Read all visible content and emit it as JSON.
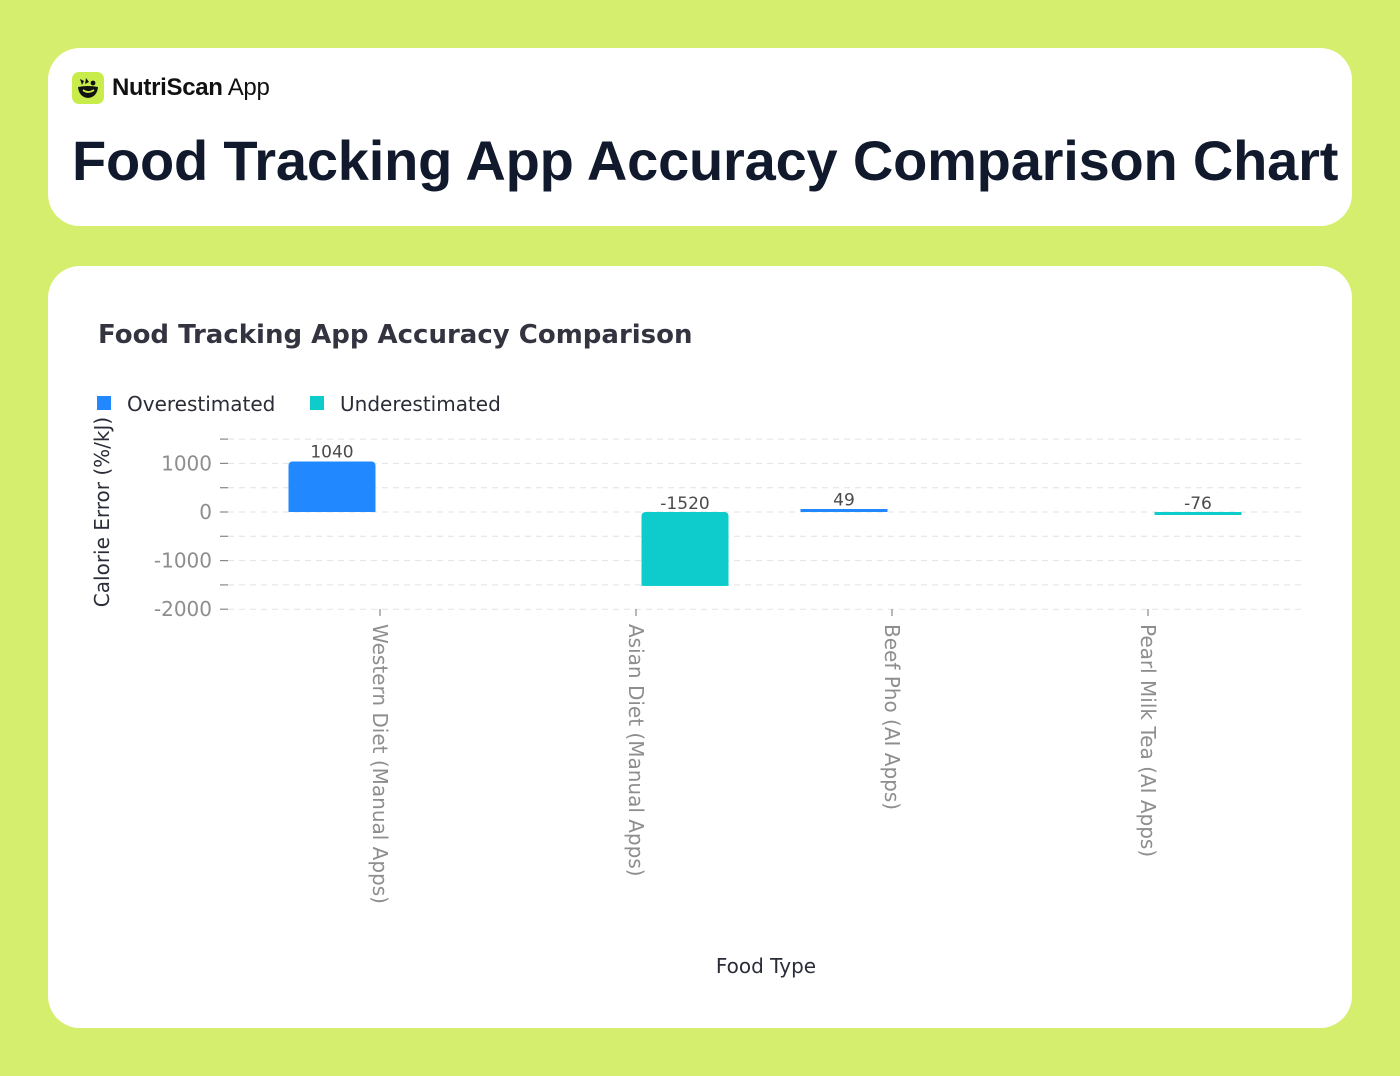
{
  "brand": {
    "name_bold": "NutriScan",
    "name_light": "App",
    "logo_icon": "bowl-leaf-icon",
    "logo_color": "#c8ec4a"
  },
  "header": {
    "title": "Food Tracking App Accuracy Comparison Chart"
  },
  "colors": {
    "page_background": "#d6ee6e",
    "overestimated": "#2288ff",
    "underestimated": "#0ecccc",
    "title_text": "#111a2c"
  },
  "chart_data": {
    "type": "bar",
    "title": "Food Tracking App Accuracy Comparison",
    "xlabel": "Food Type",
    "ylabel": "Calorie Error (%/kJ)",
    "categories": [
      "Western Diet (Manual Apps)",
      "Asian Diet (Manual Apps)",
      "Beef Pho (AI Apps)",
      "Pearl Milk Tea (AI Apps)"
    ],
    "values": [
      1040,
      -1520,
      49,
      -76
    ],
    "value_labels": [
      "1040",
      "-1520",
      "49",
      "-76"
    ],
    "bar_series": [
      "Overestimated",
      "Underestimated",
      "Overestimated",
      "Underestimated"
    ],
    "legend": [
      {
        "label": "Overestimated",
        "color": "#2288ff"
      },
      {
        "label": "Underestimated",
        "color": "#0ecccc"
      }
    ],
    "legend_position": "top-left",
    "y_ticks": [
      1000,
      0,
      -1000,
      -2000
    ],
    "y_tick_labels": [
      "1000",
      "0",
      "-1000",
      "-2000"
    ],
    "ylim": [
      -2000,
      1500
    ],
    "grid": true,
    "grid_style": "dashed horizontal"
  }
}
